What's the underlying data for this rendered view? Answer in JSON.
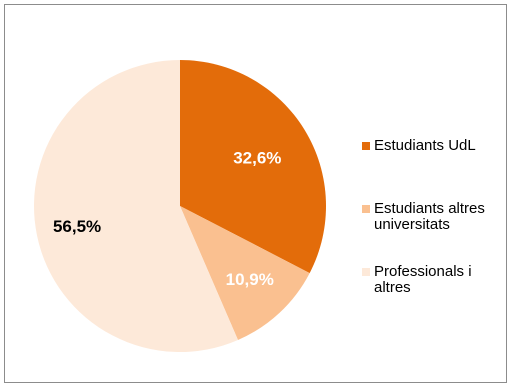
{
  "chart_data": {
    "type": "pie",
    "categories": [
      "Estudiants UdL",
      "Estudiants altres universitats",
      "Professionals i altres"
    ],
    "values": [
      32.6,
      10.9,
      56.5
    ],
    "labels": [
      "32,6%",
      "10,9%",
      "56,5%"
    ],
    "colors": [
      "#e36c0a",
      "#fac090",
      "#fde9d9"
    ],
    "label_colors": [
      "#ffffff",
      "#ffffff",
      "#000000"
    ],
    "legend_position": "right",
    "legend": [
      {
        "lines": [
          "Estudiants UdL"
        ]
      },
      {
        "lines": [
          "Estudiants altres",
          "universitats"
        ]
      },
      {
        "lines": [
          "Professionals i",
          "altres"
        ]
      }
    ]
  }
}
